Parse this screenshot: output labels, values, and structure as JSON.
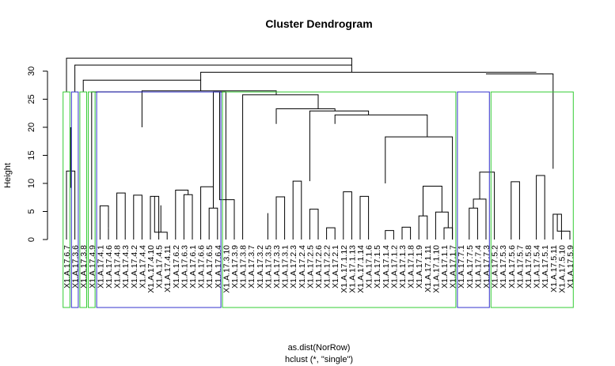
{
  "chart_data": {
    "type": "dendrogram",
    "title": "Cluster Dendrogram",
    "xlabel": "as.dist(NorRow)",
    "sublabel": "hclust (*, \"single\")",
    "ylabel": "Height",
    "ylim": [
      0,
      32
    ],
    "yticks": [
      0,
      5,
      10,
      15,
      20,
      25,
      30
    ],
    "leaves": [
      "X1.A.17.6.7",
      "X1.A.17.3.6",
      "X1.A.17.3.8",
      "X1.A.17.4.9",
      "X1.A.17.4.1",
      "X1.A.17.4.6",
      "X1.A.17.4.8",
      "X1.A.17.4.3",
      "X1.A.17.4.2",
      "X1.A.17.4.4",
      "X1.A.17.4.10",
      "X1.A.17.4.5",
      "X1.A.17.4.11",
      "X1.A.17.6.2",
      "X1.A.17.6.3",
      "X1.A.17.6.1",
      "X1.A.17.6.6",
      "X1.A.17.6.5",
      "X1.A.17.6.4",
      "X1.A.17.3.10",
      "X1.A.17.3.9",
      "X1.A.17.3.8",
      "X1.A.17.3.7",
      "X1.A.17.3.2",
      "X1.A.17.3.5",
      "X1.A.17.3.3",
      "X1.A.17.3.1",
      "X1.A.17.2.3",
      "X1.A.17.2.4",
      "X1.A.17.2.5",
      "X1.A.17.2.6",
      "X1.A.17.2.2",
      "X1.A.17.2.1",
      "X1.A.17.1.12",
      "X1.A.17.1.13",
      "X1.A.17.1.14",
      "X1.A.17.1.6",
      "X1.A.17.1.5",
      "X1.A.17.1.4",
      "X1.A.17.1.2",
      "X1.A.17.1.3",
      "X1.A.17.1.8",
      "X1.A.17.1.9",
      "X1.A.17.1.11",
      "X1.A.17.1.10",
      "X1.A.17.1.1",
      "X1.A.17.1.7",
      "X1.A.17.7.1",
      "X1.A.17.7.5",
      "X1.A.17.7.4",
      "X1.A.17.7.3",
      "X1.A.17.5.2",
      "X1.A.17.5.3",
      "X1.A.17.5.6",
      "X1.A.17.5.7",
      "X1.A.17.5.8",
      "X1.A.17.5.4",
      "X1.A.17.5.1",
      "X1.A.17.5.11",
      "X1.A.17.5.10",
      "X1.A.17.5.9"
    ],
    "merges": [
      {
        "a": 5,
        "b": 5,
        "h": 2.0
      },
      {
        "a": 4,
        "b": -1,
        "h": 6.0
      },
      {
        "a": 6,
        "b": 6,
        "h": 3.6
      },
      {
        "a": 6,
        "b": -3,
        "h": 8.3
      },
      {
        "a": 8,
        "b": 9,
        "h": 7.9
      },
      {
        "a": 10,
        "b": -5,
        "h": 7.7
      },
      {
        "a": 11,
        "b": 12,
        "h": 1.3
      },
      {
        "a": 11,
        "b": -7,
        "h": 6.1
      },
      {
        "a": 14,
        "b": 15,
        "h": 8.0
      },
      {
        "a": 13,
        "b": -9,
        "h": 8.8
      },
      {
        "a": 17,
        "b": 18,
        "h": 5.6
      },
      {
        "a": 16,
        "b": -11,
        "h": 9.4
      },
      {
        "a": -10,
        "b": -12,
        "h": 12.2
      },
      {
        "a": -4,
        "b": -8,
        "h": 20.0
      },
      {
        "a": 18,
        "b": -14,
        "h": 26.3
      },
      {
        "a": 19,
        "b": 20,
        "h": 7.1
      },
      {
        "a": 24,
        "b": 24,
        "h": 4.7
      },
      {
        "a": 25,
        "b": 26,
        "h": 7.6
      },
      {
        "a": -17,
        "b": -18,
        "h": 9.2
      },
      {
        "a": 27,
        "b": 28,
        "h": 10.4
      },
      {
        "a": 29,
        "b": 30,
        "h": 5.4
      },
      {
        "a": 31,
        "b": 32,
        "h": 2.1
      },
      {
        "a": 38,
        "b": 39,
        "h": 1.6
      },
      {
        "a": 40,
        "b": 41,
        "h": 2.2
      },
      {
        "a": 42,
        "b": 43,
        "h": 4.2
      },
      {
        "a": 45,
        "b": 46,
        "h": 2.1
      },
      {
        "a": 44,
        "b": 45,
        "h": 4.9
      },
      {
        "a": 43,
        "b": 44,
        "h": 9.5
      },
      {
        "a": 33,
        "b": 34,
        "h": 8.5
      },
      {
        "a": 35,
        "b": 36,
        "h": 7.7
      },
      {
        "a": 48,
        "b": 49,
        "h": 5.6
      },
      {
        "a": 49,
        "b": 50,
        "h": 7.2
      },
      {
        "a": 50,
        "b": 51,
        "h": 12.0
      },
      {
        "a": 53,
        "b": 54,
        "h": 10.3
      },
      {
        "a": 56,
        "b": 57,
        "h": 11.4
      },
      {
        "a": 58,
        "b": 59,
        "h": 4.5
      },
      {
        "a": 59,
        "b": 60,
        "h": 1.5
      }
    ],
    "grid": false,
    "cluster_boxes": [
      {
        "color": "#33cc33",
        "from": 0,
        "to": 0
      },
      {
        "color": "#3333cc",
        "from": 1,
        "to": 1
      },
      {
        "color": "#33cc33",
        "from": 2,
        "to": 2
      },
      {
        "color": "#33cc33",
        "from": 3,
        "to": 3
      },
      {
        "color": "#3333cc",
        "from": 4,
        "to": 18
      },
      {
        "color": "#33cc33",
        "from": 19,
        "to": 46
      },
      {
        "color": "#3333cc",
        "from": 47,
        "to": 50
      },
      {
        "color": "#33cc33",
        "from": 51,
        "to": 60
      }
    ]
  }
}
